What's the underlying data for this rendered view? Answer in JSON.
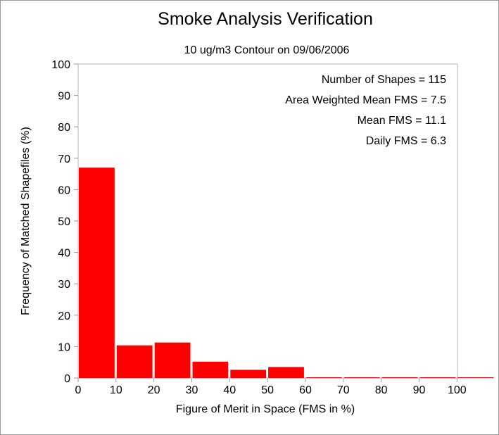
{
  "chart_data": {
    "type": "bar",
    "title": "Smoke Analysis Verification",
    "subtitle": "10 ug/m3 Contour on 09/06/2006",
    "xlabel": "Figure of Merit in Space (FMS in %)",
    "ylabel": "Frequency of Matched Shapefiles (%)",
    "xlim": [
      0,
      110
    ],
    "ylim": [
      0,
      100
    ],
    "x_ticks": [
      "0",
      "10",
      "20",
      "30",
      "40",
      "50",
      "60",
      "70",
      "80",
      "90",
      "100"
    ],
    "y_ticks": [
      "0",
      "10",
      "20",
      "30",
      "40",
      "50",
      "60",
      "70",
      "80",
      "90",
      "100"
    ],
    "bins": [
      {
        "from": 0,
        "to": 10,
        "value": 67
      },
      {
        "from": 10,
        "to": 20,
        "value": 10.4
      },
      {
        "from": 20,
        "to": 30,
        "value": 11.3
      },
      {
        "from": 30,
        "to": 40,
        "value": 5.2
      },
      {
        "from": 40,
        "to": 50,
        "value": 2.6
      },
      {
        "from": 50,
        "to": 60,
        "value": 3.5
      },
      {
        "from": 60,
        "to": 70,
        "value": 0
      },
      {
        "from": 70,
        "to": 80,
        "value": 0
      },
      {
        "from": 80,
        "to": 90,
        "value": 0
      },
      {
        "from": 90,
        "to": 100,
        "value": 0
      },
      {
        "from": 100,
        "to": 110,
        "value": 0
      }
    ],
    "bar_color": "#ff0000",
    "grid": false,
    "annotations": [
      "Number of Shapes = 115",
      "Area Weighted Mean FMS = 7.5",
      "Mean FMS = 11.1",
      "Daily FMS = 6.3"
    ]
  }
}
